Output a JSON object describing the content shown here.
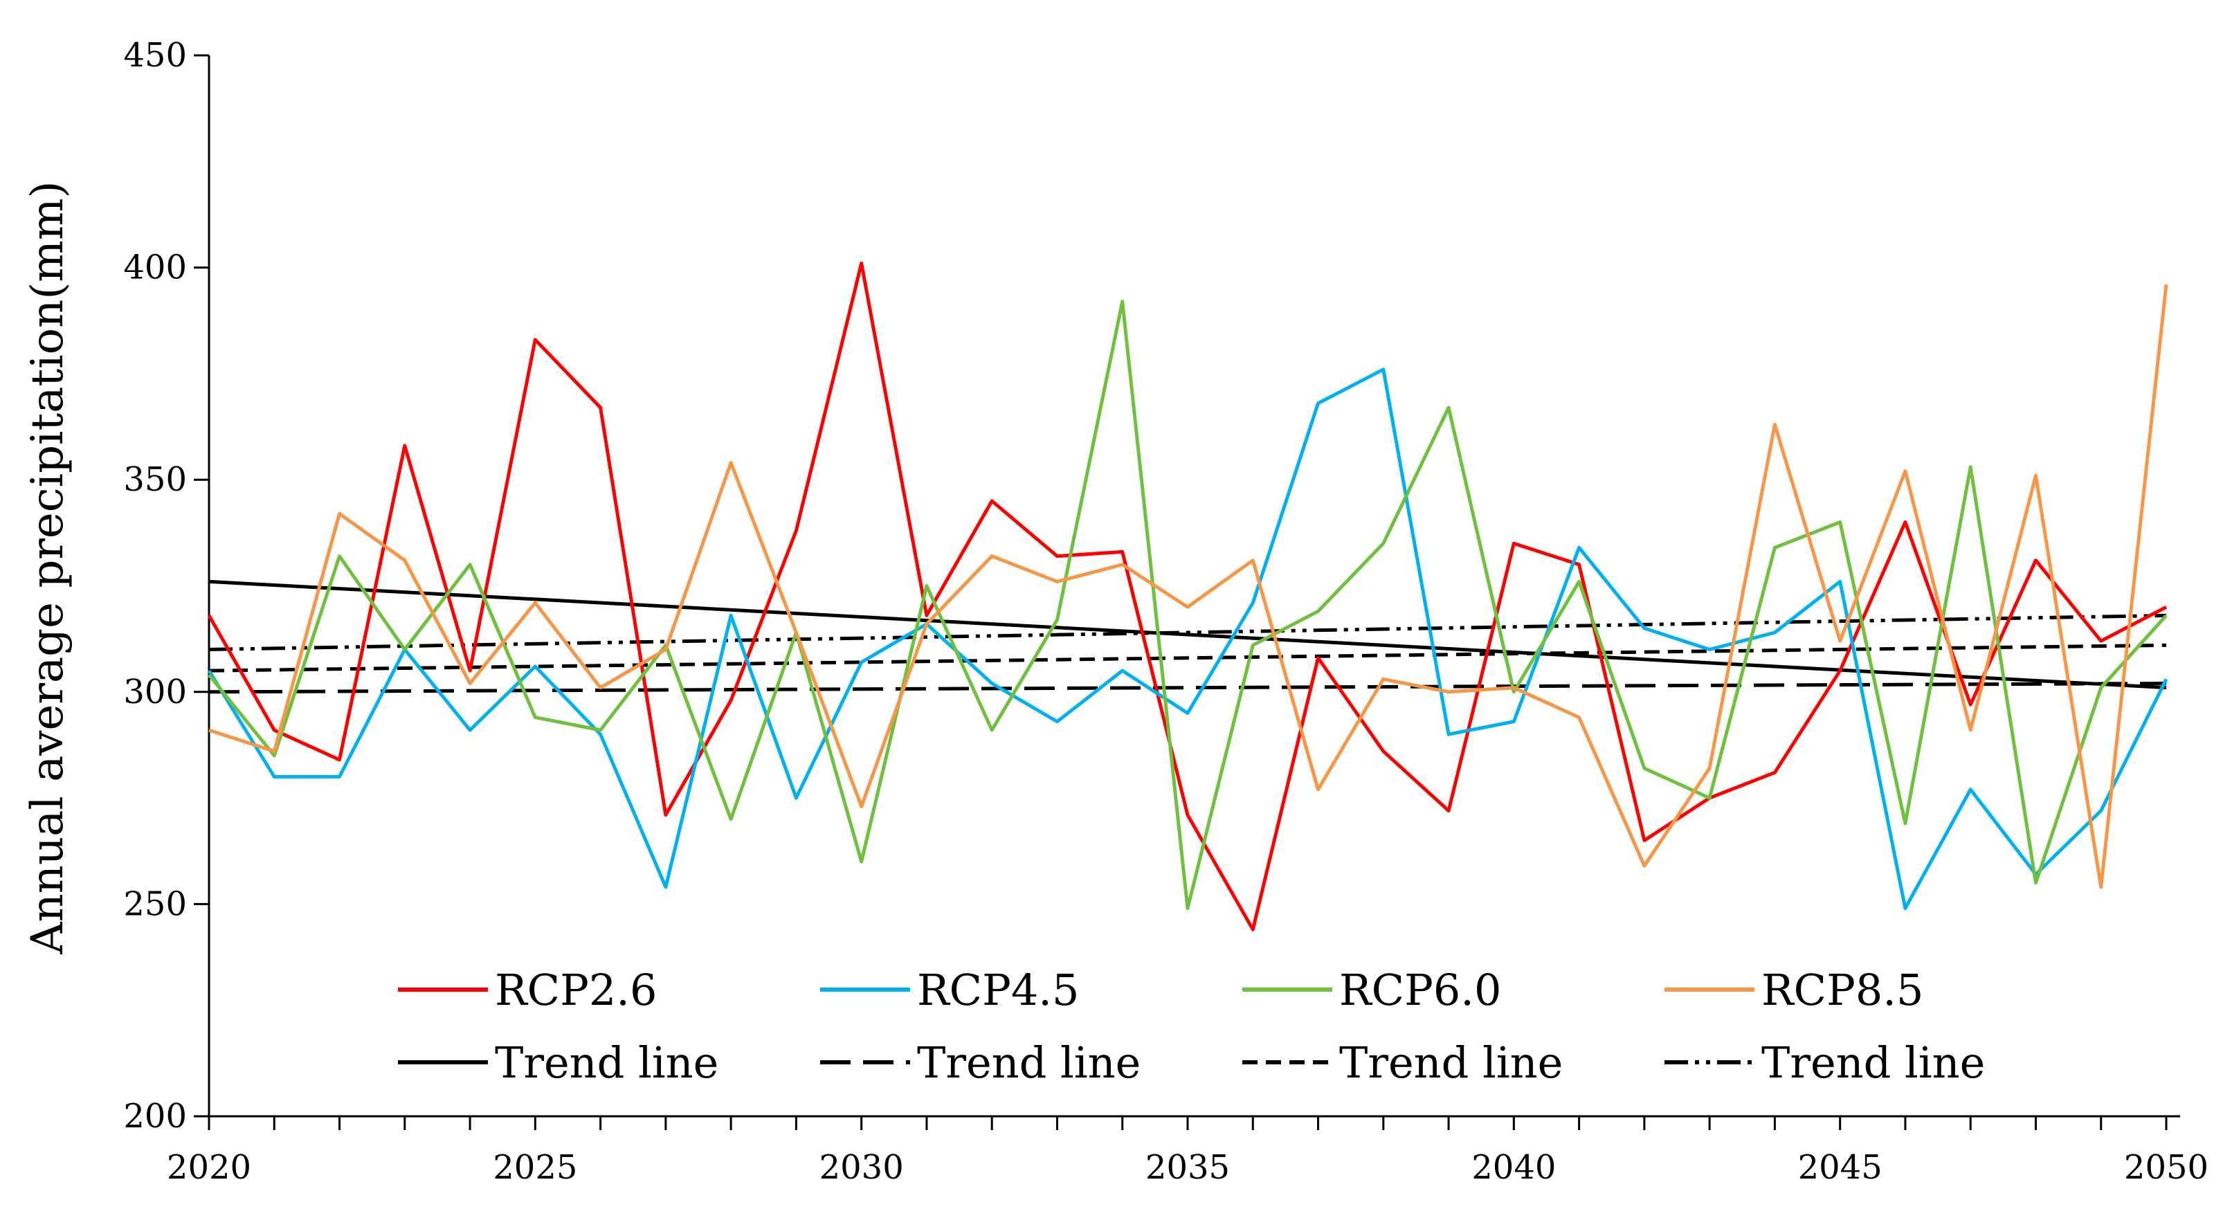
{
  "chart_data": {
    "type": "line",
    "title": "",
    "xlabel": "",
    "ylabel": "Annual average precipitation(mm)",
    "xlim": [
      2020,
      2050
    ],
    "ylim": [
      200,
      450
    ],
    "x_ticks": [
      2020,
      2025,
      2030,
      2035,
      2040,
      2045,
      2050
    ],
    "y_ticks": [
      200,
      250,
      300,
      350,
      400,
      450
    ],
    "grid": false,
    "legend_position": "bottom",
    "x": [
      2020,
      2021,
      2022,
      2023,
      2024,
      2025,
      2026,
      2027,
      2028,
      2029,
      2030,
      2031,
      2032,
      2033,
      2034,
      2035,
      2036,
      2037,
      2038,
      2039,
      2040,
      2041,
      2042,
      2043,
      2044,
      2045,
      2046,
      2047,
      2048,
      2049,
      2050
    ],
    "series": [
      {
        "name": "RCP2.6",
        "color": "#ff0000",
        "values": [
          318,
          291,
          284,
          358,
          305,
          383,
          367,
          271,
          298,
          338,
          401,
          318,
          345,
          332,
          333,
          271,
          244,
          308,
          286,
          272,
          335,
          330,
          265,
          275,
          281,
          305,
          340,
          297,
          331,
          312,
          320
        ]
      },
      {
        "name": "RCP4.5",
        "color": "#00b0f0",
        "values": [
          305,
          280,
          280,
          310,
          291,
          306,
          290,
          254,
          318,
          275,
          307,
          316,
          302,
          293,
          305,
          295,
          321,
          368,
          376,
          290,
          293,
          334,
          315,
          310,
          314,
          326,
          249,
          277,
          257,
          272,
          303
        ]
      },
      {
        "name": "RCP6.0",
        "color": "#70c040",
        "values": [
          304,
          285,
          332,
          310,
          330,
          294,
          291,
          311,
          270,
          314,
          260,
          325,
          291,
          317,
          392,
          249,
          311,
          319,
          335,
          367,
          300,
          326,
          282,
          275,
          334,
          340,
          269,
          353,
          255,
          301,
          318
        ]
      },
      {
        "name": "RCP8.5",
        "color": "#f79646",
        "values": [
          291,
          286,
          342,
          331,
          302,
          321,
          301,
          310,
          354,
          314,
          273,
          316,
          332,
          326,
          330,
          320,
          331,
          277,
          303,
          300,
          301,
          294,
          259,
          282,
          363,
          312,
          352,
          291,
          351,
          254,
          396
        ]
      }
    ],
    "trend_lines": [
      {
        "name": "Trend line",
        "style": "solid",
        "for": "RCP2.6",
        "start": 326,
        "end": 301
      },
      {
        "name": "Trend line",
        "style": "long-dash",
        "for": "RCP4.5",
        "start": 300,
        "end": 302
      },
      {
        "name": "Trend line",
        "style": "short-dash",
        "for": "RCP6.0",
        "start": 305,
        "end": 311
      },
      {
        "name": "Trend line",
        "style": "dash-dot-dot",
        "for": "RCP8.5",
        "start": 310,
        "end": 318
      }
    ],
    "legend": {
      "series_labels": [
        "RCP2.6",
        "RCP4.5",
        "RCP6.0",
        "RCP8.5"
      ],
      "trend_labels": [
        "Trend line",
        "Trend line",
        "Trend line",
        "Trend line"
      ]
    }
  }
}
